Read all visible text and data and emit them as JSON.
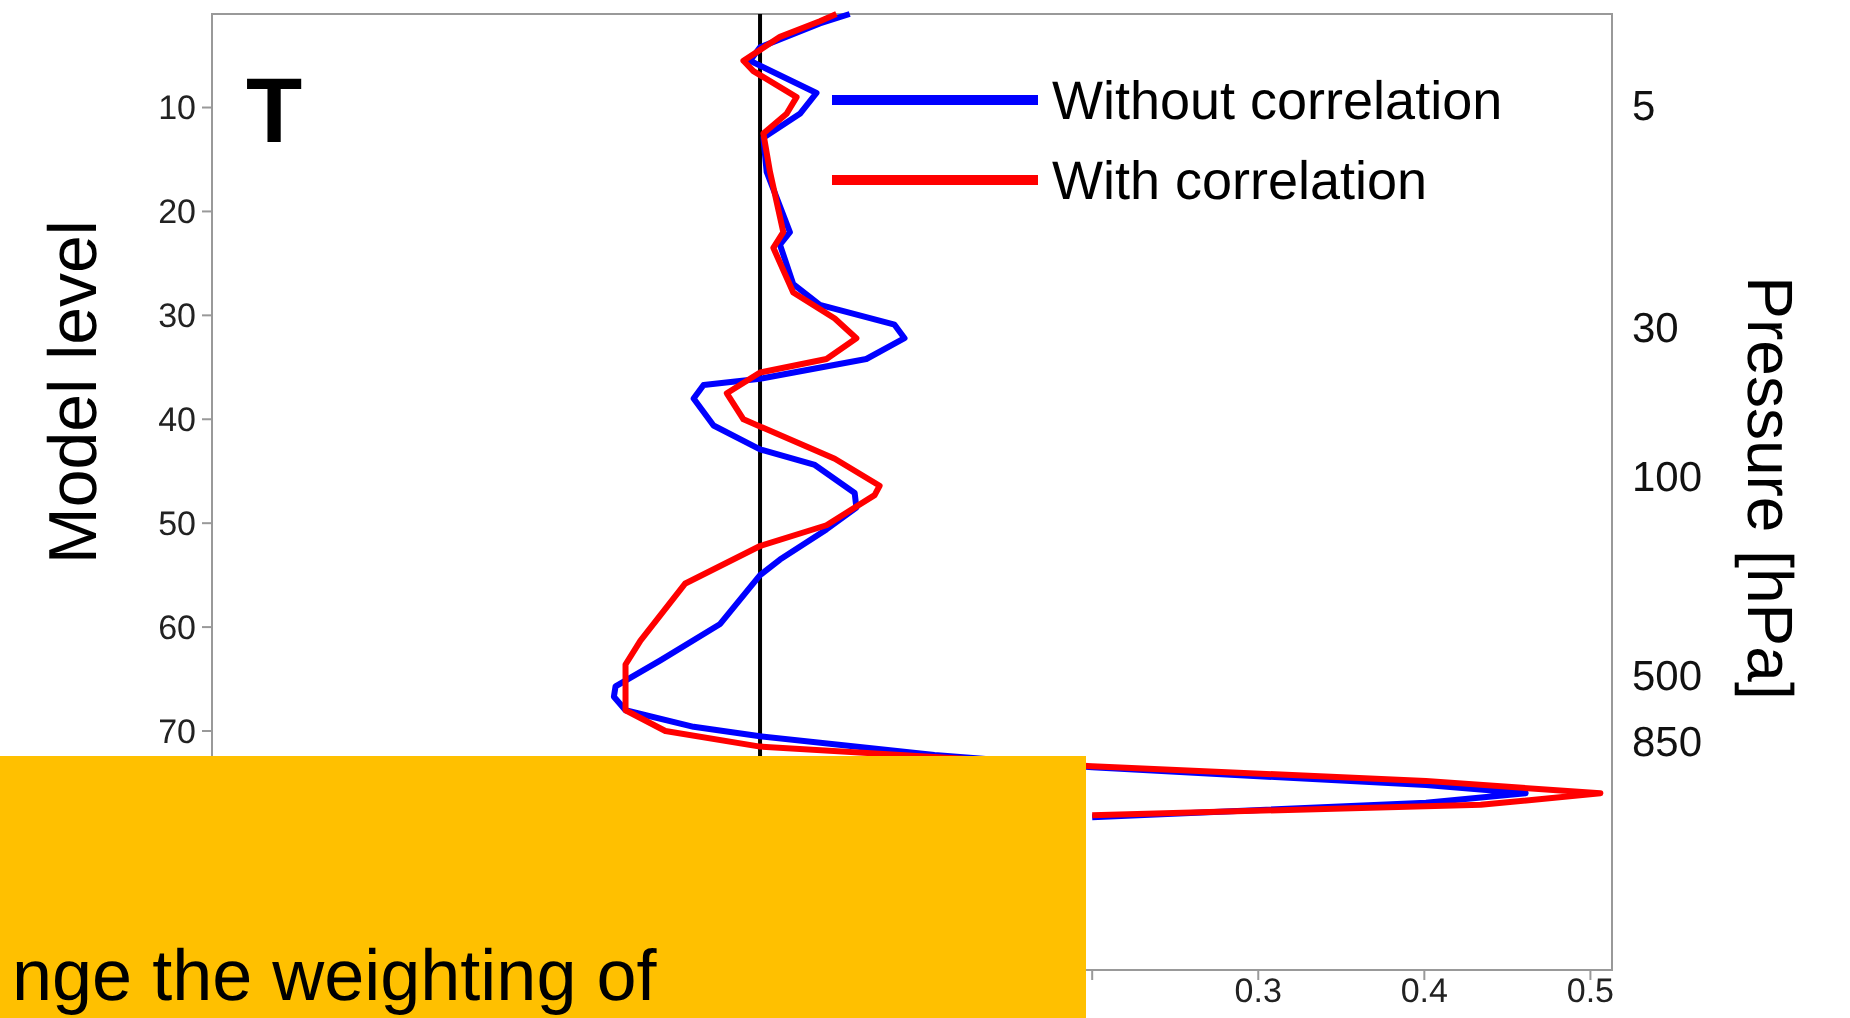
{
  "chart_data": {
    "type": "line",
    "title": "T",
    "ylabel": "Model level",
    "y2label": "Pressure [hPa]",
    "xlim": [
      -0.33,
      0.513
    ],
    "xticks": [
      {
        "value": 0.2,
        "label": null
      },
      0.3,
      0.4,
      0.5
    ],
    "ylim": [
      93,
      1
    ],
    "yticks": [
      10,
      20,
      30,
      40,
      50,
      60,
      70
    ],
    "y2lim": [
      5400,
      2.4
    ],
    "y2ticks": [
      5,
      30,
      100,
      500,
      850
    ],
    "log": "y2",
    "legend": "top right",
    "grid": false,
    "ref_lines": [
      {
        "axis": "x",
        "value": 0,
        "label": null,
        "color": "#000000"
      }
    ],
    "annotations": [
      "nge the weighting of"
    ],
    "series": [
      {
        "name": "Without correlation",
        "color": "#0000ff",
        "x": [
          0.054,
          0.036,
          0.0,
          -0.006,
          0.034,
          0.024,
          0.002,
          0.004,
          0.018,
          0.012,
          0.02,
          0.036,
          0.081,
          0.087,
          0.064,
          0.0,
          -0.034,
          -0.04,
          -0.028,
          0.0,
          0.033,
          0.057,
          0.058,
          0.04,
          0.012,
          0.0,
          -0.024,
          -0.06,
          -0.087,
          -0.088,
          -0.081,
          -0.04,
          0.0,
          0.105,
          0.2,
          0.401,
          0.461,
          0.401,
          0.2
        ],
        "values": [
          1,
          1.9,
          4.2,
          5.5,
          8.6,
          10.6,
          12.9,
          16.2,
          22,
          23.2,
          27,
          29,
          30.9,
          32.2,
          34.2,
          36.1,
          36.7,
          38,
          40.6,
          42.9,
          44.4,
          47.1,
          48.5,
          50.6,
          53.5,
          55,
          59.7,
          63.2,
          65.7,
          66.7,
          68,
          69.6,
          70.5,
          72.3,
          73.5,
          75.2,
          76,
          76.9,
          78.3
        ]
      },
      {
        "name": "With correlation",
        "color": "#ff0000",
        "x": [
          0.046,
          0.036,
          0.012,
          -0.01,
          -0.004,
          0.022,
          0.016,
          0.002,
          0.006,
          0.014,
          0.008,
          0.02,
          0.045,
          0.058,
          0.04,
          0.0,
          -0.02,
          -0.01,
          0.045,
          0.072,
          0.069,
          0.04,
          0.0,
          -0.045,
          -0.072,
          -0.081,
          -0.081,
          -0.057,
          0.0,
          0.2,
          0.401,
          0.506,
          0.434,
          0.2
        ],
        "values": [
          1,
          1.7,
          3.2,
          5.5,
          6.5,
          9,
          10.6,
          12.5,
          16.2,
          22,
          23.5,
          27.8,
          30.3,
          32.2,
          34.2,
          35.5,
          37.5,
          40,
          43.8,
          46.4,
          47.3,
          50.2,
          52.2,
          55.8,
          61.3,
          63.6,
          68,
          70,
          71.5,
          73.4,
          74.8,
          76,
          77.1,
          78.1
        ]
      }
    ]
  }
}
